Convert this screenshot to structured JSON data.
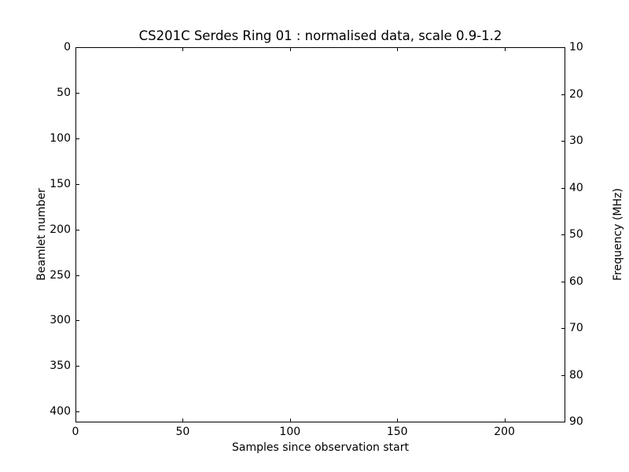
{
  "chart_data": {
    "type": "heatmap",
    "title": "CS201C Serdes Ring 01 : normalised data, scale 0.9-1.2",
    "xlabel": "Samples since observation start",
    "ylabel_left": "Beamlet number",
    "ylabel_right": "Frequency (MHz)",
    "xlim": [
      0,
      228
    ],
    "ylim_left": [
      0,
      411
    ],
    "y_left_inverted": true,
    "ylim_right": [
      10,
      90
    ],
    "y_right_top_value": 10,
    "y_right_bottom_value": 90,
    "xticks": [
      0,
      50,
      100,
      150,
      200
    ],
    "yticks_left": [
      0,
      50,
      100,
      150,
      200,
      250,
      300,
      350,
      400
    ],
    "yticks_right": [
      10,
      20,
      30,
      40,
      50,
      60,
      70,
      80,
      90
    ],
    "grid": false,
    "legend": null,
    "tick_direction": "in",
    "colors": {
      "axes": "#000000",
      "background": "#ffffff"
    },
    "plot_area_content": "uniformly white; no visible data rendered"
  }
}
